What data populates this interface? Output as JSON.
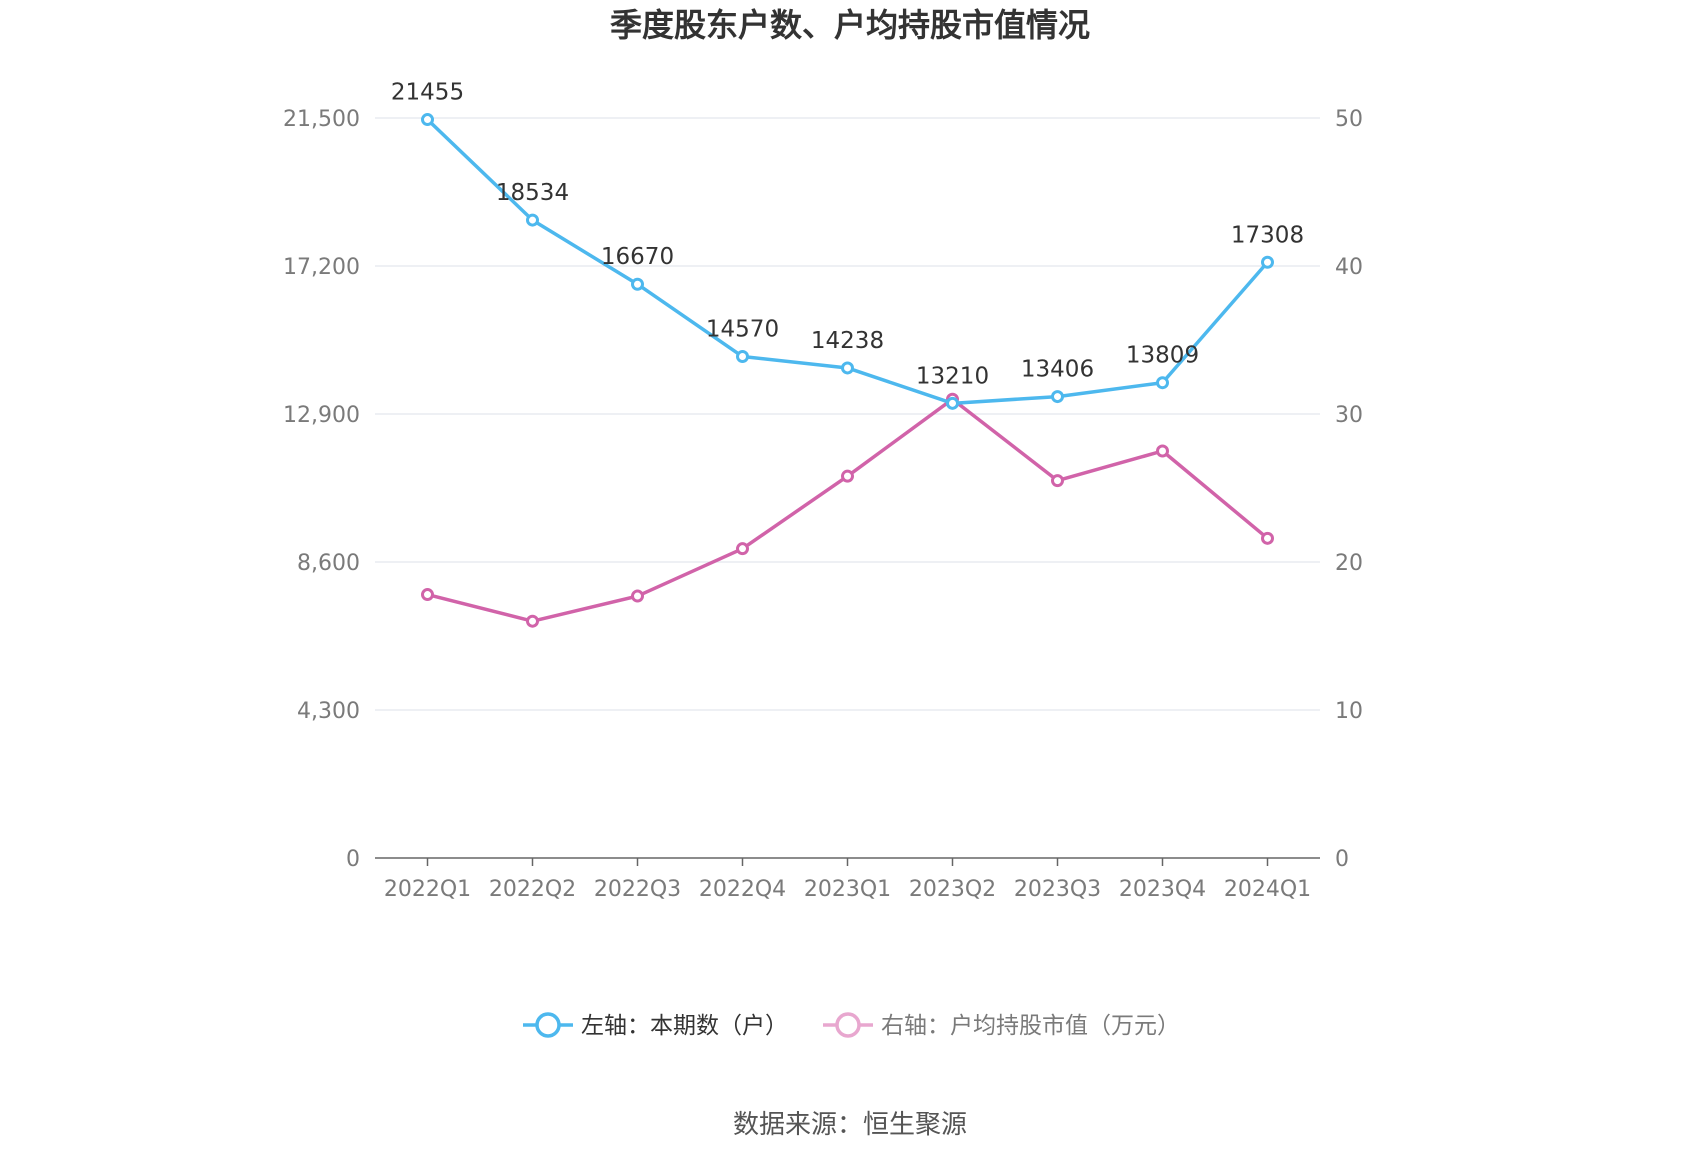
{
  "chart_data": {
    "type": "line",
    "title": "季度股东户数、户均持股市值情况",
    "categories": [
      "2022Q1",
      "2022Q2",
      "2022Q3",
      "2022Q4",
      "2023Q1",
      "2023Q2",
      "2023Q3",
      "2023Q4",
      "2024Q1"
    ],
    "left_axis": {
      "ylim": [
        0,
        21500
      ],
      "ticks": [
        0,
        4300,
        8600,
        12900,
        17200,
        21500
      ],
      "tick_labels": [
        "0",
        "4,300",
        "8,600",
        "12,900",
        "17,200",
        "21,500"
      ]
    },
    "right_axis": {
      "ylim": [
        0,
        50
      ],
      "ticks": [
        0,
        10,
        20,
        30,
        40,
        50
      ],
      "tick_labels": [
        "0",
        "10",
        "20",
        "30",
        "40",
        "50"
      ]
    },
    "series": [
      {
        "name": "左轴：本期数（户）",
        "axis": "left",
        "color": "#4db8ee",
        "values": [
          21455,
          18534,
          16670,
          14570,
          14238,
          13210,
          13406,
          13809,
          17308
        ],
        "labels": [
          "21455",
          "18534",
          "16670",
          "14570",
          "14238",
          "13210",
          "13406",
          "13809",
          "17308"
        ]
      },
      {
        "name": "右轴：户均持股市值（万元）",
        "axis": "right",
        "color": "#d163a9",
        "legend_color": "#e8a7cf",
        "values": [
          17.8,
          16.0,
          17.7,
          20.9,
          25.8,
          31.0,
          25.5,
          27.5,
          21.6
        ]
      }
    ],
    "grid": true,
    "legend_position": "bottom",
    "source": "数据来源：恒生聚源"
  }
}
